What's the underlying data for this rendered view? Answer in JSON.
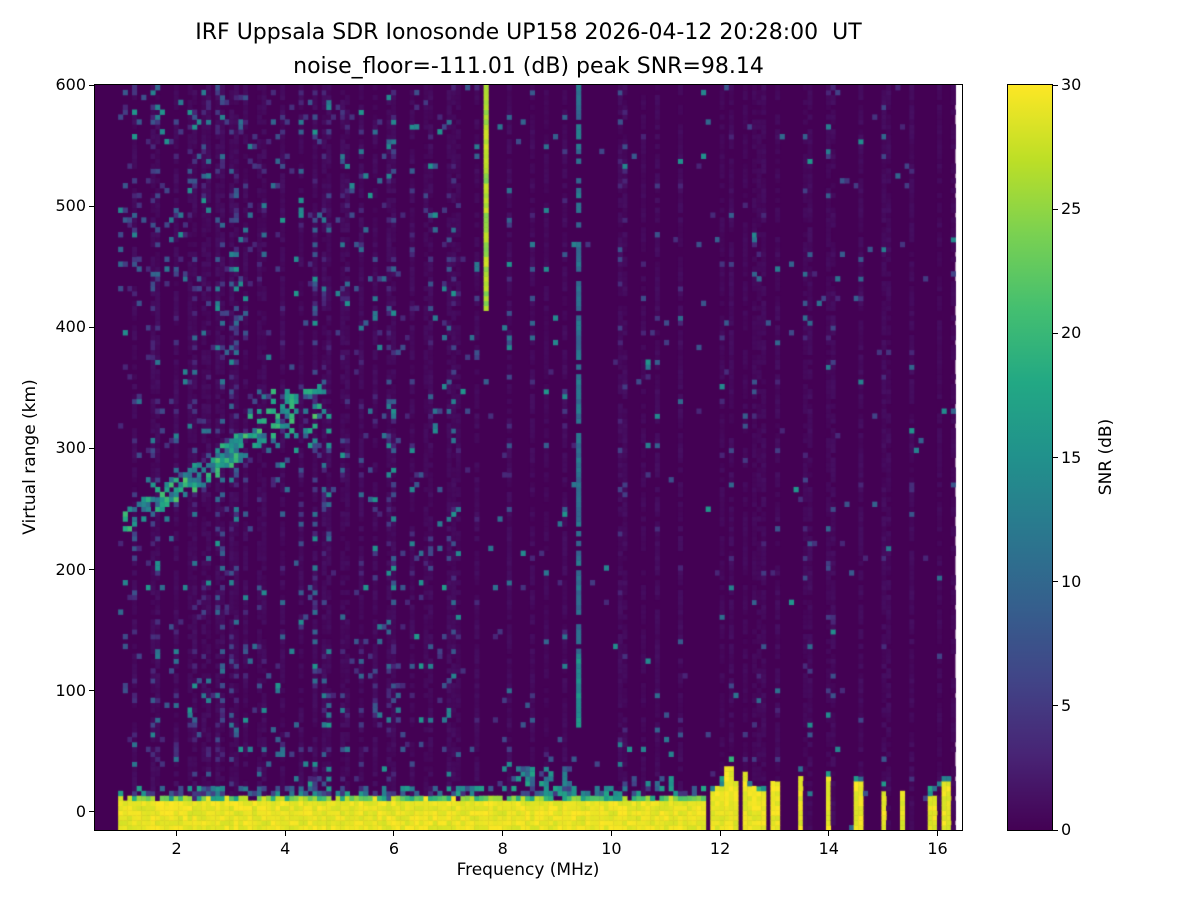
{
  "chart_data": {
    "type": "heatmap",
    "title": "IRF Uppsala SDR Ionosonde UP158 2026-04-12 20:28:00  UT",
    "subtitle": "noise_floor=-111.01 (dB) peak SNR=98.14",
    "xlabel": "Frequency (MHz)",
    "ylabel": "Virtual range (km)",
    "xlim": [
      0.5,
      16.45
    ],
    "ylim": [
      -15,
      600
    ],
    "data_xmin": 0.95,
    "data_xmax": 16.33,
    "xticks": [
      2,
      4,
      6,
      8,
      10,
      12,
      14,
      16
    ],
    "yticks": [
      0,
      100,
      200,
      300,
      400,
      500,
      600
    ],
    "colorbar": {
      "label": "SNR (dB)",
      "min": 0,
      "max": 30,
      "ticks": [
        0,
        5,
        10,
        15,
        20,
        25,
        30
      ],
      "colormap": "viridis",
      "stops": [
        "#440154",
        "#482475",
        "#414487",
        "#355f8d",
        "#2a788e",
        "#21918c",
        "#22a884",
        "#44bf70",
        "#7ad151",
        "#bddf26",
        "#fde725"
      ]
    },
    "background_snr": 0,
    "features": {
      "ground_band": {
        "f_min": 0.95,
        "f_max": 11.72,
        "r_core_min": -13,
        "r_core_max": 8,
        "core_snr": 30,
        "fringe_max": 14,
        "bulges": [
          {
            "f_min": 4.2,
            "f_max": 4.8,
            "extra": 8
          },
          {
            "f_min": 7.9,
            "f_max": 9.3,
            "extra": 14
          },
          {
            "f_min": 10.3,
            "f_max": 11.1,
            "extra": 6
          }
        ]
      },
      "ground_pulses": [
        {
          "f": 11.85,
          "h": 18
        },
        {
          "f": 12.0,
          "h": 22
        },
        {
          "f": 12.15,
          "h": 38
        },
        {
          "f": 12.3,
          "h": 26
        },
        {
          "f": 12.45,
          "h": 34
        },
        {
          "f": 12.6,
          "h": 20
        },
        {
          "f": 12.75,
          "h": 16
        },
        {
          "f": 13.0,
          "h": 24
        },
        {
          "f": 13.5,
          "h": 30
        },
        {
          "f": 14.0,
          "h": 28
        },
        {
          "f": 14.55,
          "h": 26
        },
        {
          "f": 15.0,
          "h": 18
        },
        {
          "f": 15.35,
          "h": 16
        },
        {
          "f": 15.9,
          "h": 14
        },
        {
          "f": 16.15,
          "h": 24
        }
      ],
      "rfi_stripes": [
        {
          "f": 7.72,
          "r_min": 415,
          "r_max": 600,
          "snr": 26,
          "width_mhz": 0.1,
          "density": 1.0
        },
        {
          "f": 9.42,
          "r_min": 70,
          "r_max": 600,
          "snr": 11,
          "width_mhz": 0.07,
          "density": 0.75
        }
      ],
      "echo_trace": {
        "f_min": 1.0,
        "f_max": 4.65,
        "r_at_fmin": 238,
        "slope_km_per_mhz": 29,
        "spread_km": 9,
        "snr_min": 10,
        "snr_max": 22,
        "density": 0.6
      },
      "echo_cloud": {
        "f_min": 3.3,
        "f_max": 4.8,
        "r_min": 295,
        "r_max": 348,
        "snr_min": 10,
        "snr_max": 20,
        "density": 0.18
      },
      "noise_streaks": [
        {
          "f": 1.25,
          "d": 0.22
        },
        {
          "f": 1.6,
          "d": 0.15
        },
        {
          "f": 2.0,
          "d": 0.12
        },
        {
          "f": 2.3,
          "d": 0.2
        },
        {
          "f": 2.55,
          "d": 0.12
        },
        {
          "f": 2.8,
          "d": 0.18
        },
        {
          "f": 3.05,
          "d": 0.22
        },
        {
          "f": 3.3,
          "d": 0.1
        },
        {
          "f": 3.6,
          "d": 0.12
        },
        {
          "f": 3.95,
          "d": 0.14
        },
        {
          "f": 4.3,
          "d": 0.12
        },
        {
          "f": 4.55,
          "d": 0.38
        },
        {
          "f": 4.75,
          "d": 0.16
        },
        {
          "f": 5.1,
          "d": 0.1
        },
        {
          "f": 5.4,
          "d": 0.16
        },
        {
          "f": 5.65,
          "d": 0.1
        },
        {
          "f": 5.95,
          "d": 0.2
        },
        {
          "f": 6.3,
          "d": 0.1
        },
        {
          "f": 6.65,
          "d": 0.1
        },
        {
          "f": 7.05,
          "d": 0.14
        },
        {
          "f": 7.5,
          "d": 0.1
        },
        {
          "f": 8.1,
          "d": 0.1
        },
        {
          "f": 8.55,
          "d": 0.08
        },
        {
          "f": 9.15,
          "d": 0.08
        },
        {
          "f": 10.2,
          "d": 0.1
        },
        {
          "f": 10.85,
          "d": 0.08
        },
        {
          "f": 11.3,
          "d": 0.08
        },
        {
          "f": 12.2,
          "d": 0.06
        },
        {
          "f": 12.8,
          "d": 0.07
        },
        {
          "f": 13.05,
          "d": 0.06
        },
        {
          "f": 13.6,
          "d": 0.05
        },
        {
          "f": 14.05,
          "d": 0.07
        },
        {
          "f": 14.6,
          "d": 0.06
        },
        {
          "f": 15.05,
          "d": 0.05
        },
        {
          "f": 15.55,
          "d": 0.05
        }
      ],
      "background_speckle": {
        "density_left": 0.035,
        "density_right": 0.012,
        "snr_min": 3,
        "snr_max": 16,
        "split_mhz": 7.5
      },
      "topleft_speckle": {
        "f_max": 3.4,
        "r_min": 430,
        "extra_density": 0.05
      }
    }
  },
  "colors": {
    "figure_background": "#ffffff",
    "heatmap_low": "#440154",
    "heatmap_high": "#fde725",
    "axis": "#000000"
  }
}
